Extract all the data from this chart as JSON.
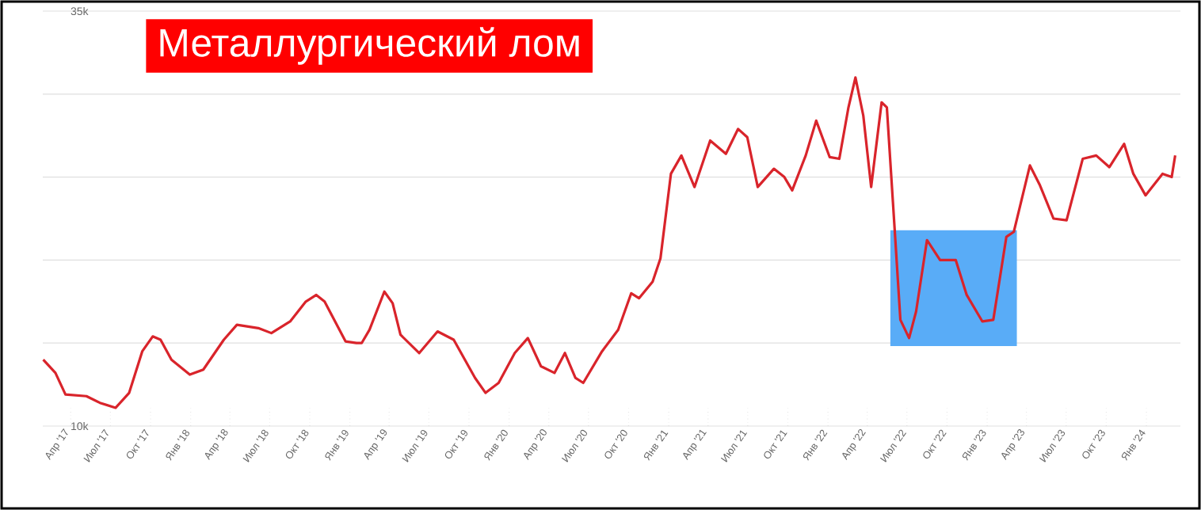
{
  "chart_data": {
    "type": "line",
    "title": "Металлургический лом",
    "color": "#d9242b",
    "x": [
      "2017-01-28",
      "2017-02-25",
      "2017-03-20",
      "2017-05-07",
      "2017-06-07",
      "2017-07-13",
      "2017-08-13",
      "2017-09-12",
      "2017-10-06",
      "2017-10-24",
      "2017-11-18",
      "2017-12-30",
      "2018-01-30",
      "2018-03-18",
      "2018-04-17",
      "2018-06-05",
      "2018-07-05",
      "2018-08-17",
      "2018-09-22",
      "2018-10-16",
      "2018-11-04",
      "2018-12-22",
      "2019-01-16",
      "2019-01-28",
      "2019-02-15",
      "2019-03-21",
      "2019-04-09",
      "2019-04-27",
      "2019-06-09",
      "2019-07-21",
      "2019-08-27",
      "2019-10-15",
      "2019-11-08",
      "2019-12-08",
      "2020-01-14",
      "2020-02-13",
      "2020-03-14",
      "2020-04-14",
      "2020-05-08",
      "2020-06-01",
      "2020-06-19",
      "2020-08-01",
      "2020-09-07",
      "2020-10-07",
      "2020-10-25",
      "2020-11-25",
      "2020-12-13",
      "2021-01-06",
      "2021-01-30",
      "2021-03-01",
      "2021-04-06",
      "2021-05-12",
      "2021-06-09",
      "2021-06-30",
      "2021-07-24",
      "2021-08-30",
      "2021-09-23",
      "2021-10-11",
      "2021-11-11",
      "2021-12-05",
      "2022-01-05",
      "2022-01-27",
      "2022-02-17",
      "2022-03-05",
      "2022-03-23",
      "2022-04-10",
      "2022-05-04",
      "2022-05-16",
      "2022-06-04",
      "2022-06-16",
      "2022-07-06",
      "2022-07-22",
      "2022-08-16",
      "2022-09-15",
      "2022-10-21",
      "2022-11-15",
      "2022-12-21",
      "2023-01-15",
      "2023-02-14",
      "2023-03-03",
      "2023-04-09",
      "2023-05-02",
      "2023-06-02",
      "2023-07-02",
      "2023-08-08",
      "2023-09-08",
      "2023-10-08",
      "2023-11-11",
      "2023-12-02",
      "2023-12-30",
      "2024-02-07",
      "2024-02-28",
      "2024-03-07"
    ],
    "values": [
      14000,
      13200,
      11900,
      11800,
      11400,
      11100,
      12000,
      14500,
      15400,
      15200,
      14000,
      13100,
      13400,
      15200,
      16100,
      15900,
      15600,
      16300,
      17500,
      17900,
      17500,
      15100,
      15000,
      15000,
      15800,
      18100,
      17400,
      15500,
      14400,
      15700,
      15200,
      12900,
      12000,
      12600,
      14400,
      15300,
      13600,
      13200,
      14400,
      12900,
      12600,
      14500,
      15800,
      18000,
      17700,
      18700,
      20100,
      25200,
      26300,
      24400,
      27200,
      26400,
      27900,
      27400,
      24400,
      25500,
      25000,
      24200,
      26300,
      28400,
      26200,
      26100,
      29200,
      31000,
      28700,
      24400,
      29500,
      29200,
      21400,
      16400,
      15300,
      16900,
      21200,
      20000,
      20000,
      17900,
      16300,
      16400,
      21400,
      21700,
      25700,
      24500,
      22500,
      22400,
      26100,
      26300,
      25600,
      27000,
      25200,
      23900,
      25200,
      25000,
      26300
    ],
    "xlim": [
      "2017-01-27",
      "2024-03-19"
    ],
    "ylim": [
      10000,
      35000
    ],
    "xticks": [
      {
        "value": "2017-04-01",
        "label": "Апр '17"
      },
      {
        "value": "2017-07-01",
        "label": "Июл '17"
      },
      {
        "value": "2017-10-01",
        "label": "Окт '17"
      },
      {
        "value": "2018-01-01",
        "label": "Янв '18"
      },
      {
        "value": "2018-04-01",
        "label": "Апр '18"
      },
      {
        "value": "2018-07-01",
        "label": "Июл '18"
      },
      {
        "value": "2018-10-01",
        "label": "Окт '18"
      },
      {
        "value": "2019-01-01",
        "label": "Янв '19"
      },
      {
        "value": "2019-04-01",
        "label": "Апр '19"
      },
      {
        "value": "2019-07-01",
        "label": "Июл '19"
      },
      {
        "value": "2019-10-01",
        "label": "Окт '19"
      },
      {
        "value": "2020-01-01",
        "label": "Янв '20"
      },
      {
        "value": "2020-04-01",
        "label": "Апр '20"
      },
      {
        "value": "2020-07-01",
        "label": "Июл '20"
      },
      {
        "value": "2020-10-01",
        "label": "Окт '20"
      },
      {
        "value": "2021-01-01",
        "label": "Янв '21"
      },
      {
        "value": "2021-04-01",
        "label": "Апр '21"
      },
      {
        "value": "2021-07-01",
        "label": "Июл '21"
      },
      {
        "value": "2021-10-01",
        "label": "Окт '21"
      },
      {
        "value": "2022-01-01",
        "label": "Янв '22"
      },
      {
        "value": "2022-04-01",
        "label": "Апр '22"
      },
      {
        "value": "2022-07-01",
        "label": "Июл '22"
      },
      {
        "value": "2022-10-01",
        "label": "Окт '22"
      },
      {
        "value": "2023-01-01",
        "label": "Янв '23"
      },
      {
        "value": "2023-04-01",
        "label": "Апр '23"
      },
      {
        "value": "2023-07-01",
        "label": "Июл '23"
      },
      {
        "value": "2023-10-01",
        "label": "Окт '23"
      },
      {
        "value": "2024-01-01",
        "label": "Янв '24"
      }
    ],
    "yticks": [
      {
        "value": 10000,
        "label": "10k"
      },
      {
        "value": 15000,
        "label": null
      },
      {
        "value": 20000,
        "label": null
      },
      {
        "value": 25000,
        "label": null
      },
      {
        "value": 30000,
        "label": null
      },
      {
        "value": 35000,
        "label": "35k"
      }
    ],
    "grid": "y",
    "bands": [
      {
        "axis": "x",
        "from": "2022-05-24",
        "to": "2023-03-10",
        "color": "#59acf7"
      }
    ]
  }
}
